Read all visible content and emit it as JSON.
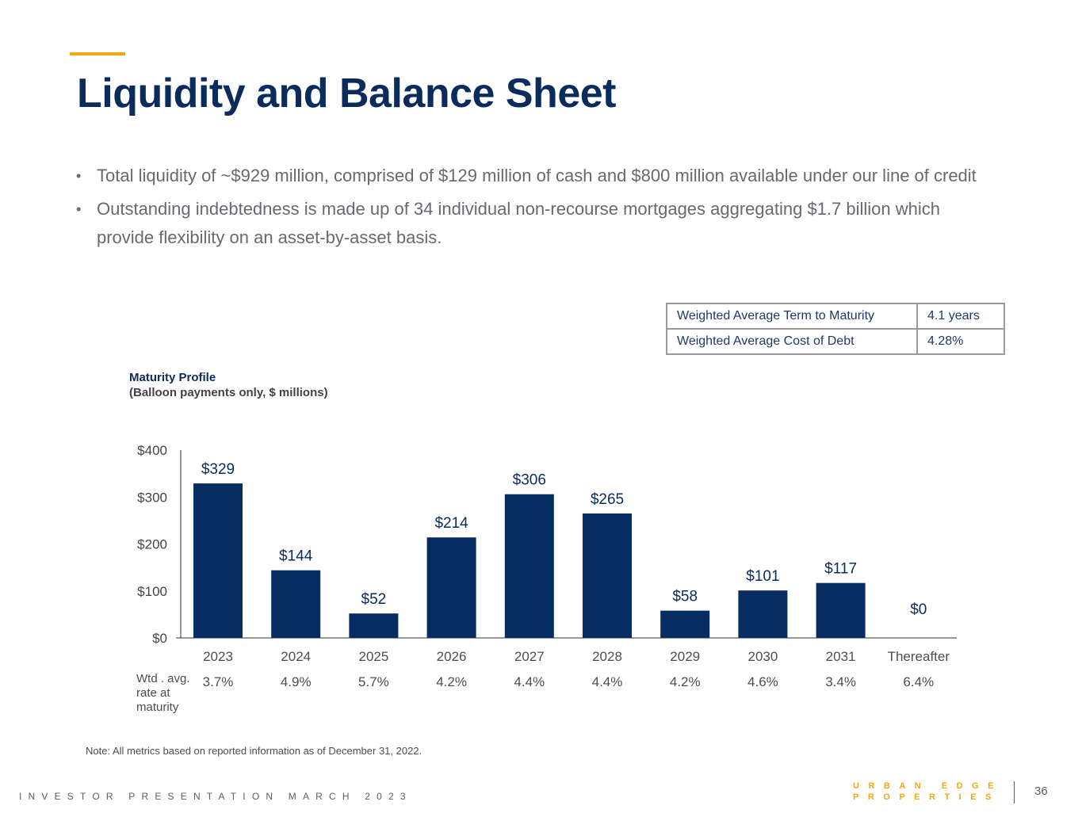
{
  "title": "Liquidity and Balance Sheet",
  "bullets": [
    "Total liquidity of ~$929 million, comprised of $129 million of cash and $800 million available under our line of credit",
    "Outstanding indebtedness is made up of 34 individual non-recourse mortgages aggregating $1.7 billion which provide flexibility on an asset-by-asset basis."
  ],
  "bullet_marker": "•",
  "metrics_table": [
    {
      "label": "Weighted Average Term to Maturity",
      "value": "4.1 years"
    },
    {
      "label": "Weighted Average Cost of Debt",
      "value": "4.28%"
    }
  ],
  "chart_data": {
    "type": "bar",
    "title": "Maturity Profile",
    "subtitle": "(Balloon payments only, $ millions)",
    "categories": [
      "2023",
      "2024",
      "2025",
      "2026",
      "2027",
      "2028",
      "2029",
      "2030",
      "2031",
      "Thereafter"
    ],
    "values": [
      329,
      144,
      52,
      214,
      306,
      265,
      58,
      101,
      117,
      0
    ],
    "value_labels": [
      "$329",
      "$144",
      "$52",
      "$214",
      "$306",
      "$265",
      "$58",
      "$101",
      "$117",
      "$0"
    ],
    "ylim": [
      0,
      400
    ],
    "yticks": [
      0,
      100,
      200,
      300,
      400
    ],
    "ytick_labels": [
      "$0",
      "$100",
      "$200",
      "$300",
      "$400"
    ],
    "xlabel": "",
    "ylabel": "",
    "bar_color": "#062c62",
    "secondary_row": {
      "label": "Wtd . avg. rate at maturity",
      "values": [
        "3.7%",
        "4.9%",
        "5.7%",
        "4.2%",
        "4.4%",
        "4.4%",
        "4.2%",
        "4.6%",
        "3.4%",
        "6.4%"
      ]
    }
  },
  "note": "Note: All metrics based on reported information as of December 31, 2022.",
  "footer": {
    "left": "INVESTOR PRESENTATION MARCH 2023",
    "logo_line1": "URBAN EDGE",
    "logo_line2": "PROPERTIES",
    "page_number": "36"
  },
  "colors": {
    "accent": "#f3a712",
    "navy": "#0a2b5c"
  }
}
